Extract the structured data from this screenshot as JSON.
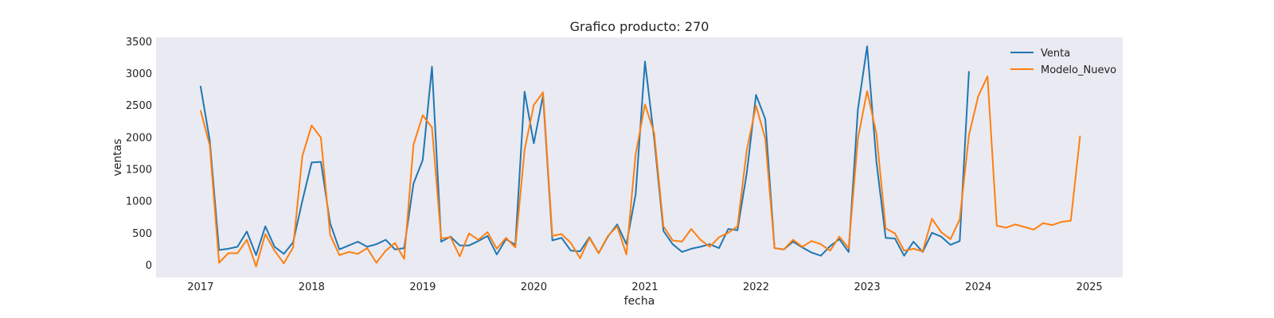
{
  "chart_data": {
    "type": "line",
    "title": "Grafico producto: 270",
    "xlabel": "fecha",
    "ylabel": "ventas",
    "xlim": [
      2016.6,
      2025.3
    ],
    "ylim": [
      -200,
      3560
    ],
    "x_ticks": [
      2017,
      2018,
      2019,
      2020,
      2021,
      2022,
      2023,
      2024,
      2025
    ],
    "y_ticks": [
      0,
      500,
      1000,
      1500,
      2000,
      2500,
      3000,
      3500
    ],
    "grid": false,
    "legend_position": "top-right",
    "background": "#eaeaf2",
    "series": [
      {
        "name": "Venta",
        "color": "#1f77b4",
        "start": 2017.0,
        "step": 0.08333,
        "values": [
          2800,
          1950,
          230,
          250,
          280,
          520,
          150,
          600,
          280,
          170,
          350,
          1000,
          1600,
          1610,
          650,
          240,
          300,
          360,
          280,
          320,
          390,
          240,
          260,
          1270,
          1640,
          3100,
          360,
          440,
          300,
          300,
          370,
          450,
          160,
          400,
          310,
          2710,
          1900,
          2650,
          380,
          420,
          220,
          210,
          430,
          180,
          440,
          630,
          320,
          1100,
          3180,
          1970,
          530,
          320,
          200,
          250,
          280,
          320,
          260,
          560,
          540,
          1440,
          2660,
          2280,
          260,
          240,
          360,
          270,
          190,
          140,
          290,
          400,
          200,
          2430,
          3420,
          1610,
          420,
          410,
          140,
          360,
          200,
          500,
          440,
          310,
          370,
          3030
        ]
      },
      {
        "name": "Modelo_Nuevo",
        "color": "#ff7f0e",
        "start": 2017.0,
        "step": 0.08333,
        "values": [
          2420,
          1870,
          30,
          180,
          180,
          390,
          -30,
          480,
          220,
          20,
          270,
          1700,
          2180,
          1990,
          470,
          150,
          200,
          170,
          260,
          30,
          220,
          340,
          90,
          1880,
          2340,
          2150,
          410,
          430,
          130,
          490,
          390,
          510,
          250,
          420,
          270,
          1800,
          2500,
          2700,
          450,
          480,
          340,
          100,
          420,
          180,
          450,
          600,
          160,
          1730,
          2510,
          2060,
          600,
          380,
          360,
          560,
          390,
          280,
          430,
          500,
          600,
          1800,
          2490,
          1970,
          260,
          240,
          390,
          280,
          370,
          320,
          220,
          440,
          260,
          1970,
          2720,
          2050,
          570,
          490,
          220,
          250,
          210,
          720,
          510,
          400,
          710,
          2030,
          2640,
          2950,
          610,
          580,
          630,
          590,
          550,
          650,
          620,
          670,
          690,
          2020
        ]
      }
    ]
  }
}
